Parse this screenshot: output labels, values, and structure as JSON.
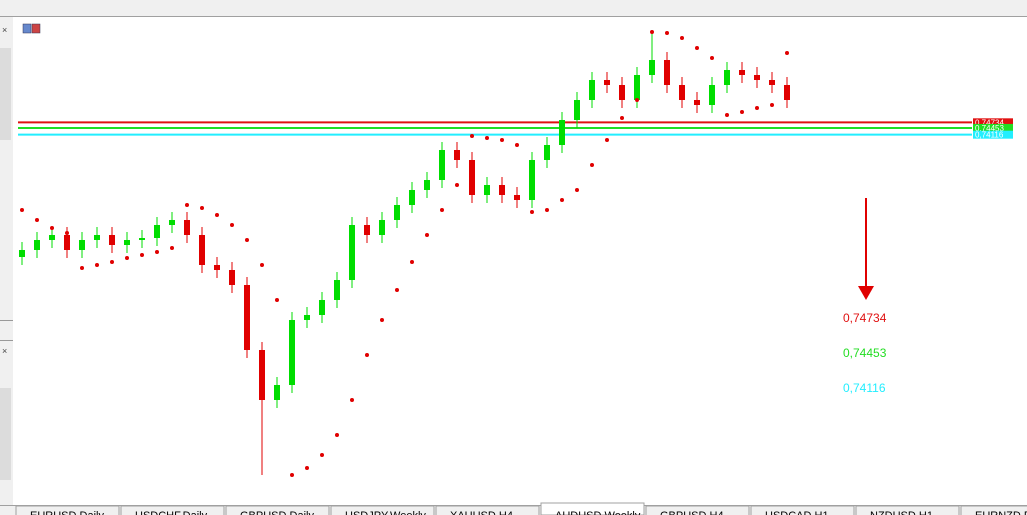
{
  "chart_data": {
    "type": "candlestick",
    "ylim": [
      0.556,
      0.8
    ],
    "up_color": "#00dd00",
    "down_color": "#e00000",
    "open": [
      0.68,
      0.6835,
      0.6885,
      0.691,
      0.6835,
      0.6885,
      0.691,
      0.686,
      0.6885,
      0.6895,
      0.696,
      0.6985,
      0.691,
      0.676,
      0.6735,
      0.666,
      0.6335,
      0.6085,
      0.616,
      0.6485,
      0.651,
      0.6585,
      0.6685,
      0.696,
      0.691,
      0.6985,
      0.706,
      0.7135,
      0.7185,
      0.7335,
      0.7285,
      0.711,
      0.716,
      0.711,
      0.7085,
      0.7285,
      0.736,
      0.7485,
      0.7585,
      0.7685,
      0.766,
      0.7585,
      0.771,
      0.7785,
      0.766,
      0.7585,
      0.756,
      0.766,
      0.7735,
      0.771,
      0.7685,
      0.766
    ],
    "high": [
      0.6875,
      0.6925,
      0.695,
      0.695,
      0.6925,
      0.695,
      0.695,
      0.6925,
      0.6935,
      0.7,
      0.7025,
      0.7025,
      0.695,
      0.68,
      0.6775,
      0.67,
      0.6375,
      0.62,
      0.6525,
      0.655,
      0.6625,
      0.6725,
      0.7,
      0.7,
      0.7025,
      0.71,
      0.7175,
      0.7225,
      0.7375,
      0.7375,
      0.7325,
      0.72,
      0.72,
      0.715,
      0.7325,
      0.74,
      0.7525,
      0.7625,
      0.7725,
      0.7725,
      0.77,
      0.775,
      0.7935,
      0.7825,
      0.77,
      0.7625,
      0.77,
      0.7775,
      0.7775,
      0.775,
      0.7725,
      0.77
    ],
    "low": [
      0.676,
      0.6795,
      0.6845,
      0.6795,
      0.6795,
      0.6845,
      0.682,
      0.682,
      0.6845,
      0.6855,
      0.692,
      0.687,
      0.672,
      0.6695,
      0.662,
      0.6295,
      0.571,
      0.6045,
      0.612,
      0.6445,
      0.647,
      0.6545,
      0.6645,
      0.687,
      0.687,
      0.6945,
      0.702,
      0.7095,
      0.7145,
      0.7245,
      0.707,
      0.707,
      0.707,
      0.7045,
      0.7045,
      0.7245,
      0.732,
      0.7445,
      0.7545,
      0.762,
      0.7545,
      0.7545,
      0.767,
      0.762,
      0.7545,
      0.752,
      0.752,
      0.762,
      0.767,
      0.7645,
      0.762,
      0.7545
    ],
    "close": [
      0.6835,
      0.6885,
      0.691,
      0.6835,
      0.6885,
      0.691,
      0.686,
      0.6885,
      0.6895,
      0.696,
      0.6985,
      0.691,
      0.676,
      0.6735,
      0.666,
      0.6335,
      0.6085,
      0.616,
      0.6485,
      0.651,
      0.6585,
      0.6685,
      0.696,
      0.691,
      0.6985,
      0.706,
      0.7135,
      0.7185,
      0.7335,
      0.7285,
      0.711,
      0.716,
      0.711,
      0.7085,
      0.7285,
      0.736,
      0.7485,
      0.7585,
      0.7685,
      0.766,
      0.7585,
      0.771,
      0.7785,
      0.766,
      0.7585,
      0.756,
      0.766,
      0.7735,
      0.771,
      0.7685,
      0.766,
      0.7585
    ],
    "sar_color": "#e00000",
    "sar": [
      0.7035,
      0.6985,
      0.6945,
      0.692,
      0.6745,
      0.676,
      0.6775,
      0.6795,
      0.681,
      0.6825,
      0.6845,
      0.706,
      0.7045,
      0.701,
      0.696,
      0.6885,
      0.676,
      0.6585,
      0.571,
      0.5745,
      0.581,
      0.591,
      0.6085,
      0.631,
      0.6485,
      0.6635,
      0.6775,
      0.691,
      0.7035,
      0.716,
      0.7405,
      0.7395,
      0.7385,
      0.736,
      0.7025,
      0.7035,
      0.7085,
      0.7135,
      0.726,
      0.7385,
      0.7495,
      0.7585,
      0.7925,
      0.792,
      0.7895,
      0.7845,
      0.7795,
      0.751,
      0.7525,
      0.7545,
      0.756,
      0.782
    ],
    "levels": [
      {
        "value": 0.74734,
        "label": "0,74734",
        "color": "#e01010"
      },
      {
        "value": 0.74453,
        "label": "0,74453",
        "color": "#22dd22"
      },
      {
        "value": 0.74116,
        "label": "0,74116",
        "color": "#22eeff"
      }
    ],
    "tabs": [
      "EURUSD,Daily",
      "USDCHF,Daily",
      "GBPUSD,Daily",
      "USDJPY,Weekly",
      "XAUUSD,H4",
      "AUDUSD,Weekly",
      "GBPUSD,H4",
      "USDCAD,H1",
      "NZDUSD,H1",
      "EURNZD,Daily"
    ],
    "active_tab": 5
  }
}
